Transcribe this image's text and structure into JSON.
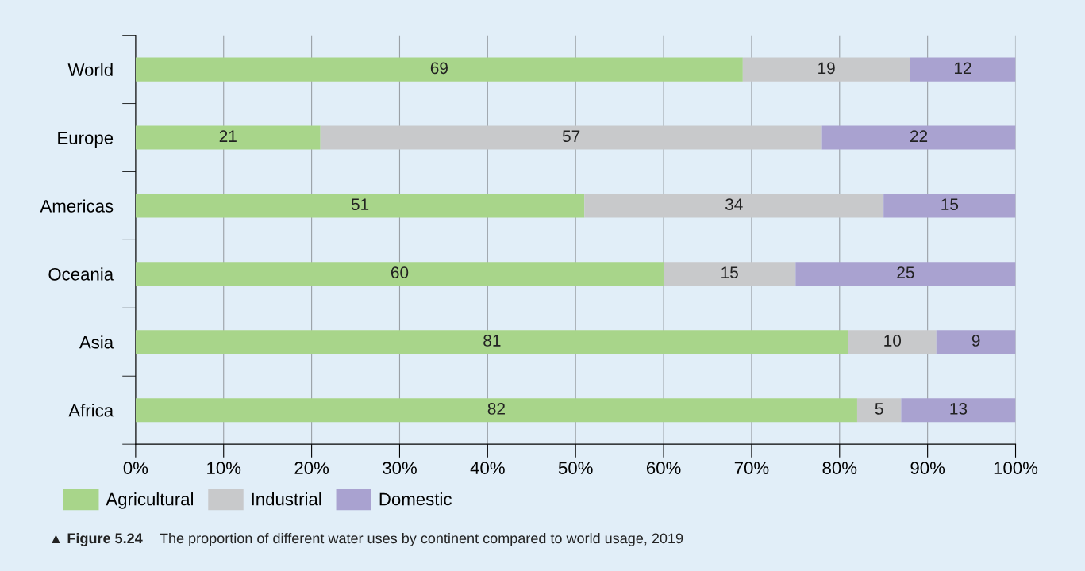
{
  "chart_data": {
    "type": "bar",
    "orientation": "horizontal",
    "stacked": true,
    "categories": [
      "World",
      "Europe",
      "Americas",
      "Oceania",
      "Asia",
      "Africa"
    ],
    "series": [
      {
        "name": "Agricultural",
        "color": "#a8d58a",
        "values": [
          69,
          21,
          51,
          60,
          81,
          82
        ]
      },
      {
        "name": "Industrial",
        "color": "#c8c9cb",
        "values": [
          19,
          57,
          34,
          15,
          10,
          5
        ]
      },
      {
        "name": "Domestic",
        "color": "#a9a2d0",
        "values": [
          12,
          22,
          15,
          25,
          9,
          13
        ]
      }
    ],
    "xlim": [
      0,
      100
    ],
    "xticks": [
      {
        "value": 0,
        "label": "0%"
      },
      {
        "value": 10,
        "label": "10%"
      },
      {
        "value": 20,
        "label": "20%"
      },
      {
        "value": 30,
        "label": "30%"
      },
      {
        "value": 40,
        "label": "40%"
      },
      {
        "value": 50,
        "label": "50%"
      },
      {
        "value": 60,
        "label": "60%"
      },
      {
        "value": 70,
        "label": "70%"
      },
      {
        "value": 80,
        "label": "80%"
      },
      {
        "value": 90,
        "label": "90%"
      },
      {
        "value": 100,
        "label": "100%"
      }
    ],
    "grid": "x",
    "legend": "bottom",
    "data_labels": true,
    "annotations": [
      "▲ Figure 5.24",
      "The proportion of different water uses by continent compared to world usage, 2019"
    ]
  }
}
